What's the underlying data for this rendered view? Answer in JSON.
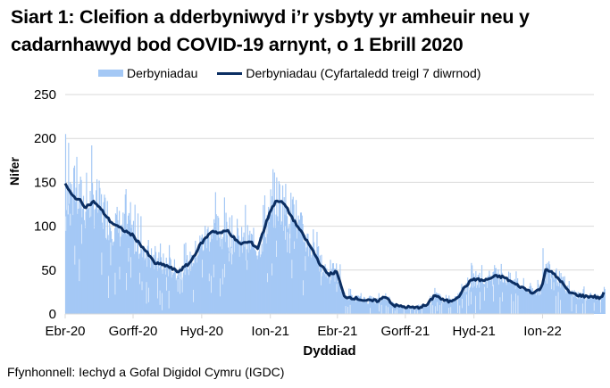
{
  "title_line1": "Siart 1: Cleifion a dderbyniwyd i’r ysbyty yr amheuir neu y",
  "title_line2": "cadarnhawyd bod COVID-19 arnynt, o 1 Ebrill 2020",
  "legend": {
    "bars": "Derbyniadau",
    "line": "Derbyniadau  (Cyfartaledd treigl 7 diwrnod)"
  },
  "source": "Ffynhonnell: Iechyd a Gofal Digidol Cymru (IGDC)",
  "colors": {
    "bars": "#a4c8f5",
    "line": "#0b2e62",
    "grid": "#d9d9d9"
  },
  "chart_data": {
    "type": "bar+line",
    "title": "Siart 1: Cleifion a dderbyniwyd i’r ysbyty yr amheuir neu y cadarnhawyd bod COVID-19 arnynt, o 1 Ebrill 2020",
    "xlabel": "Dyddiad",
    "ylabel": "Nifer",
    "ylim": [
      0,
      250
    ],
    "yticks": [
      0,
      50,
      100,
      150,
      200,
      250
    ],
    "xticks": [
      "Ebr-20",
      "Gorff-20",
      "Hyd-20",
      "Ion-21",
      "Ebr-21",
      "Gorff-21",
      "Hyd-21",
      "Ion-22"
    ],
    "grid": true,
    "legend_position": "top",
    "series": [
      {
        "name": "Derbyniadau (Cyfartaledd treigl 7 diwrnod)",
        "type": "line",
        "x_days_since_2020_04_01": [
          0,
          9,
          19,
          27,
          39,
          49,
          61,
          75,
          90,
          105,
          120,
          136,
          151,
          167,
          182,
          197,
          207,
          218,
          233,
          248,
          258,
          268,
          275,
          284,
          294,
          304,
          315,
          330,
          343,
          353,
          364,
          374,
          389,
          404,
          419,
          430,
          440,
          455,
          470,
          485,
          496,
          506,
          516,
          527,
          537,
          547,
          562,
          577,
          588,
          603,
          618,
          628,
          639,
          644,
          654,
          664,
          675,
          685,
          698,
          708,
          718,
          723
        ],
        "values": [
          148,
          135,
          130,
          122,
          128,
          118,
          105,
          97,
          90,
          75,
          58,
          55,
          48,
          58,
          80,
          95,
          92,
          95,
          80,
          82,
          75,
          100,
          118,
          130,
          125,
          110,
          95,
          75,
          55,
          45,
          48,
          20,
          18,
          15,
          15,
          20,
          10,
          8,
          7,
          10,
          22,
          16,
          14,
          20,
          32,
          40,
          38,
          43,
          42,
          34,
          28,
          24,
          30,
          52,
          46,
          38,
          25,
          22,
          20,
          20,
          18,
          25
        ]
      },
      {
        "name": "Derbyniadau",
        "type": "bar",
        "note": "daily values; scatter around the rolling average with peaks ~205 (Apr-20), ~165 (Jan-21), ~75 (Jan-22)"
      }
    ]
  }
}
